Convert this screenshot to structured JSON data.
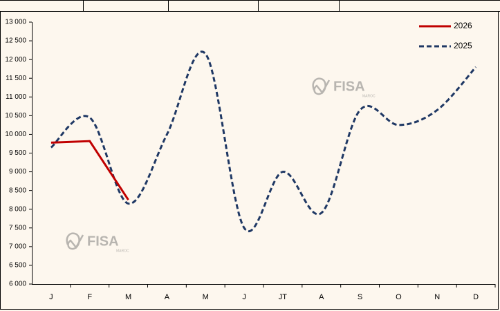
{
  "chart_data": {
    "type": "line",
    "categories": [
      "J",
      "F",
      "M",
      "A",
      "M",
      "J",
      "JT",
      "A",
      "S",
      "O",
      "N",
      "D"
    ],
    "series": [
      {
        "name": "2026",
        "color": "#c00000",
        "dash": false,
        "smooth": false,
        "values": [
          9780,
          9820,
          8250,
          null,
          null,
          null,
          null,
          null,
          null,
          null,
          null,
          null
        ]
      },
      {
        "name": "2025",
        "color": "#1f3864",
        "dash": true,
        "smooth": true,
        "values": [
          9650,
          10450,
          8150,
          10000,
          12150,
          7500,
          9000,
          7900,
          10650,
          10250,
          10650,
          11800
        ]
      }
    ],
    "ylim": [
      6000,
      13000
    ],
    "yticks": [
      {
        "value": 6000,
        "label": "6 000"
      },
      {
        "value": 6500,
        "label": "6 500"
      },
      {
        "value": 7000,
        "label": "7 000"
      },
      {
        "value": 7500,
        "label": "7 500"
      },
      {
        "value": 8000,
        "label": "8 000"
      },
      {
        "value": 8500,
        "label": "8 500"
      },
      {
        "value": 9000,
        "label": "9 000"
      },
      {
        "value": 9500,
        "label": "9 500"
      },
      {
        "value": 10000,
        "label": "10 000"
      },
      {
        "value": 10500,
        "label": "10 500"
      },
      {
        "value": 11000,
        "label": "11 000"
      },
      {
        "value": 11500,
        "label": "11 500"
      },
      {
        "value": 12000,
        "label": "12 000"
      },
      {
        "value": 12500,
        "label": "12 500"
      },
      {
        "value": 13000,
        "label": "13 000"
      }
    ],
    "grid": false,
    "legend": "top-right",
    "watermark": {
      "name": "FISA",
      "sub": "MAROC"
    }
  }
}
